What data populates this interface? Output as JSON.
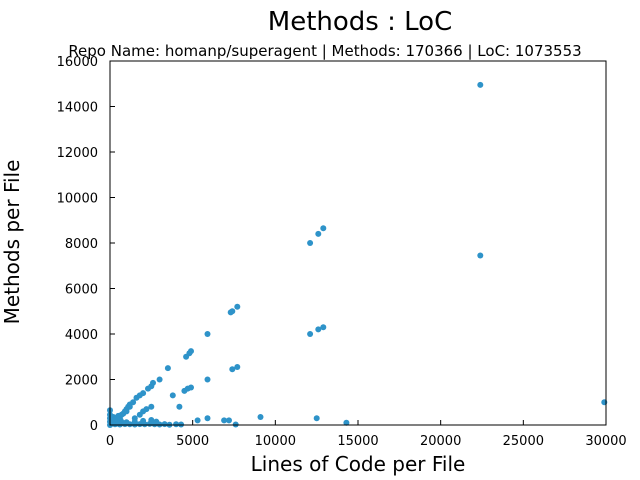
{
  "chart_data": {
    "type": "scatter",
    "title": "Methods : LoC",
    "subtitle": "Repo Name: homanp/superagent | Methods: 170366 | LoC: 1073553",
    "xlabel": "Lines of Code per File",
    "ylabel": "Methods per File",
    "xlim": [
      0,
      30000
    ],
    "ylim": [
      0,
      16000
    ],
    "xticks": [
      0,
      5000,
      10000,
      15000,
      20000,
      25000,
      30000
    ],
    "yticks": [
      0,
      2000,
      4000,
      6000,
      8000,
      10000,
      12000,
      14000,
      16000
    ],
    "grid": false,
    "marker_color": "#2e93c9",
    "series": [
      {
        "points": [
          [
            0,
            0
          ],
          [
            0,
            150
          ],
          [
            0,
            300
          ],
          [
            0,
            450
          ],
          [
            0,
            650
          ],
          [
            60,
            40
          ],
          [
            120,
            80
          ],
          [
            150,
            200
          ],
          [
            200,
            350
          ],
          [
            250,
            100
          ],
          [
            300,
            250
          ],
          [
            350,
            50
          ],
          [
            400,
            300
          ],
          [
            450,
            150
          ],
          [
            500,
            400
          ],
          [
            550,
            60
          ],
          [
            600,
            350
          ],
          [
            650,
            200
          ],
          [
            700,
            450
          ],
          [
            750,
            100
          ],
          [
            800,
            500
          ],
          [
            900,
            600
          ],
          [
            1000,
            700
          ],
          [
            1100,
            800
          ],
          [
            1200,
            900
          ],
          [
            300,
            30
          ],
          [
            600,
            20
          ],
          [
            900,
            40
          ],
          [
            1200,
            30
          ],
          [
            1500,
            20
          ],
          [
            1800,
            40
          ],
          [
            2100,
            30
          ],
          [
            2400,
            50
          ],
          [
            2700,
            30
          ],
          [
            3000,
            20
          ],
          [
            3300,
            40
          ],
          [
            3600,
            10
          ],
          [
            4000,
            30
          ],
          [
            4300,
            20
          ],
          [
            500,
            80
          ],
          [
            1000,
            120
          ],
          [
            1500,
            150
          ],
          [
            2000,
            180
          ],
          [
            2500,
            220
          ],
          [
            2800,
            150
          ],
          [
            1500,
            300
          ],
          [
            1800,
            450
          ],
          [
            2000,
            600
          ],
          [
            2200,
            700
          ],
          [
            2500,
            800
          ],
          [
            1600,
            1200
          ],
          [
            1800,
            1300
          ],
          [
            2000,
            1400
          ],
          [
            2300,
            1600
          ],
          [
            2500,
            1700
          ],
          [
            2600,
            1850
          ],
          [
            1400,
            1000
          ],
          [
            1200,
            800
          ],
          [
            1000,
            600
          ],
          [
            3000,
            2000
          ],
          [
            3500,
            2500
          ],
          [
            3800,
            1300
          ],
          [
            4200,
            800
          ],
          [
            4600,
            3000
          ],
          [
            4800,
            3150
          ],
          [
            4900,
            3250
          ],
          [
            4500,
            1500
          ],
          [
            4700,
            1600
          ],
          [
            4900,
            1650
          ],
          [
            5900,
            4000
          ],
          [
            5900,
            2000
          ],
          [
            5900,
            300
          ],
          [
            5300,
            200
          ],
          [
            7300,
            4950
          ],
          [
            7400,
            5000
          ],
          [
            7700,
            5200
          ],
          [
            7400,
            2450
          ],
          [
            7700,
            2550
          ],
          [
            6900,
            200
          ],
          [
            7200,
            200
          ],
          [
            7600,
            20
          ],
          [
            9100,
            350
          ],
          [
            12100,
            8000
          ],
          [
            12600,
            8400
          ],
          [
            12900,
            8650
          ],
          [
            12100,
            4000
          ],
          [
            12600,
            4200
          ],
          [
            12900,
            4300
          ],
          [
            12500,
            300
          ],
          [
            14300,
            100
          ],
          [
            22400,
            14950
          ],
          [
            22400,
            7450
          ],
          [
            29900,
            1000
          ]
        ]
      }
    ]
  }
}
